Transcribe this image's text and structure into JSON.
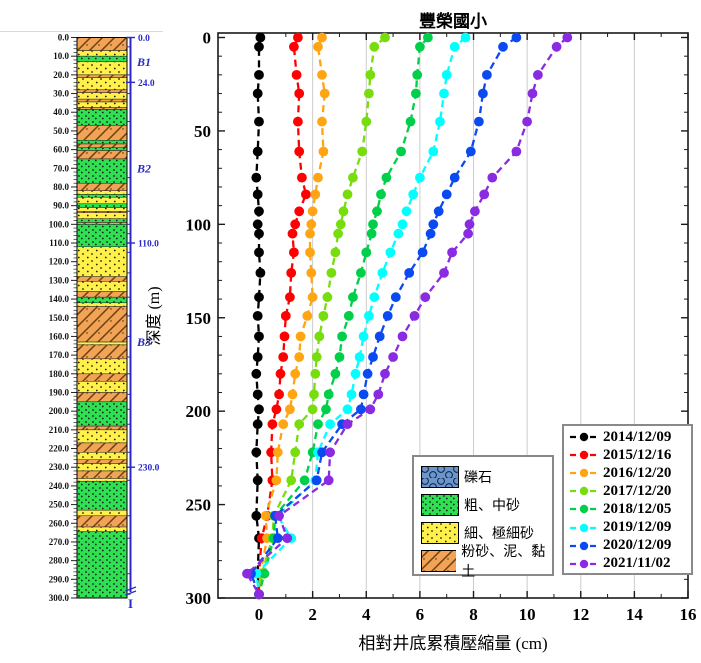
{
  "title": "豐榮國小",
  "axes": {
    "xlabel": "相對井底累積壓縮量 (cm)",
    "ylabel": "深度 (m)",
    "x_ticks": [
      0,
      2,
      4,
      6,
      8,
      10,
      12,
      14,
      16
    ],
    "y_ticks": [
      0,
      50,
      100,
      150,
      200,
      250,
      300
    ]
  },
  "chart_data": {
    "type": "line",
    "title": "豐榮國小",
    "xlabel": "相對井底累積壓縮量 (cm)",
    "ylabel": "深度 (m)",
    "xlim": [
      -1.53,
      16
    ],
    "ylim": [
      300,
      -2.4
    ],
    "grid": "vertical-only",
    "legend_position": "lower-right",
    "marker": "circle-dashed-line",
    "depths_m": [
      0,
      5,
      20,
      30,
      45,
      61,
      75,
      84,
      93,
      100,
      105,
      115,
      126,
      139,
      149,
      160,
      171,
      180,
      191,
      199,
      207,
      222,
      237,
      256,
      268,
      287,
      298
    ],
    "series": [
      {
        "name": "2014/12/09",
        "color": "#000000",
        "values": [
          0.05,
          0,
          0,
          -0.05,
          0,
          -0.05,
          -0.1,
          -0.05,
          0,
          -0.05,
          0,
          0,
          0.05,
          0,
          -0.05,
          0,
          -0.05,
          -0.1,
          -0.05,
          0,
          -0.05,
          -0.1,
          -0.05,
          -0.1,
          0,
          -0.05,
          0
        ]
      },
      {
        "name": "2015/12/16",
        "color": "#ff0000",
        "values": [
          1.45,
          1.3,
          1.4,
          1.5,
          1.45,
          1.5,
          1.6,
          1.75,
          1.5,
          1.35,
          1.25,
          1.3,
          1.2,
          1.15,
          1.0,
          0.95,
          0.9,
          0.8,
          0.75,
          0.65,
          0.5,
          0.45,
          0.5,
          0.3,
          0.1,
          0,
          0
        ]
      },
      {
        "name": "2016/12/20",
        "color": "#ffa514",
        "values": [
          2.35,
          2.2,
          2.35,
          2.45,
          2.35,
          2.4,
          2.2,
          2.1,
          2.0,
          1.95,
          1.9,
          1.9,
          1.95,
          2.0,
          1.8,
          1.55,
          1.5,
          1.35,
          1.25,
          1.15,
          0.9,
          0.7,
          0.65,
          0.25,
          0.3,
          0.05,
          0
        ]
      },
      {
        "name": "2017/12/20",
        "color": "#77dd0c",
        "values": [
          4.7,
          4.3,
          4.15,
          4.1,
          4.0,
          3.85,
          3.5,
          3.3,
          3.15,
          3.05,
          2.95,
          2.85,
          2.7,
          2.55,
          2.4,
          2.25,
          2.15,
          2.1,
          2.05,
          2.0,
          1.5,
          1.35,
          1.2,
          0.55,
          0.5,
          0.1,
          0
        ]
      },
      {
        "name": "2018/12/05",
        "color": "#00cf4a",
        "values": [
          6.3,
          6.0,
          5.9,
          5.85,
          5.65,
          5.3,
          4.75,
          4.55,
          4.4,
          4.25,
          4.2,
          4.0,
          3.8,
          3.5,
          3.35,
          3.1,
          3.0,
          2.85,
          2.6,
          2.5,
          2.2,
          2.0,
          1.7,
          0.6,
          0.55,
          0.2,
          0
        ]
      },
      {
        "name": "2019/12/09",
        "color": "#00ffff",
        "values": [
          7.7,
          7.3,
          7.0,
          6.9,
          6.75,
          6.5,
          6.0,
          5.75,
          5.5,
          5.35,
          5.2,
          4.9,
          4.6,
          4.3,
          4.1,
          3.9,
          3.75,
          3.6,
          3.45,
          3.3,
          2.65,
          2.2,
          2.1,
          0.7,
          1.2,
          -0.1,
          0
        ]
      },
      {
        "name": "2020/12/09",
        "color": "#0a4af0",
        "values": [
          9.6,
          9.1,
          8.5,
          8.35,
          8.2,
          7.9,
          7.3,
          7.0,
          6.7,
          6.5,
          6.4,
          6.1,
          5.6,
          5.1,
          4.8,
          4.5,
          4.25,
          4.05,
          3.9,
          3.8,
          3.1,
          2.35,
          2.15,
          0.6,
          0.7,
          -0.3,
          0
        ]
      },
      {
        "name": "2021/11/02",
        "color": "#8a2be2",
        "values": [
          11.5,
          11.1,
          10.4,
          10.2,
          10.0,
          9.6,
          8.7,
          8.4,
          8.05,
          7.85,
          7.8,
          7.2,
          6.9,
          6.2,
          5.8,
          5.35,
          5.0,
          4.7,
          4.45,
          4.15,
          3.3,
          2.65,
          2.6,
          0.75,
          1.05,
          -0.45,
          0
        ]
      }
    ]
  },
  "borehole": {
    "depth_labels": [
      "0.0",
      "10.0",
      "20.0",
      "30.0",
      "40.0",
      "50.0",
      "60.0",
      "70.0",
      "80.0",
      "90.0",
      "100.0",
      "110.0",
      "120.0",
      "130.0",
      "140.0",
      "150.0",
      "160.0",
      "170.0",
      "180.0",
      "190.0",
      "200.0",
      "210.0",
      "220.0",
      "230.0",
      "240.0",
      "250.0",
      "260.0",
      "270.0",
      "280.0",
      "290.0",
      "300.0"
    ],
    "zone_markers": [
      {
        "label": "0.0",
        "depth": 0,
        "kind": "tick"
      },
      {
        "label": "B1",
        "depth": 13,
        "kind": "zone"
      },
      {
        "label": "24.0",
        "depth": 24,
        "kind": "tick"
      },
      {
        "label": "B2",
        "depth": 70,
        "kind": "zone"
      },
      {
        "label": "110.0",
        "depth": 110,
        "kind": "tick"
      },
      {
        "label": "B3",
        "depth": 163,
        "kind": "zone"
      },
      {
        "label": "230.0",
        "depth": 230,
        "kind": "tick"
      }
    ],
    "anchor_symbol": "I",
    "bracket_color": "#2929c8",
    "layers": [
      [
        0,
        7,
        "silt_clay"
      ],
      [
        7,
        10,
        "fine_sand"
      ],
      [
        10,
        13,
        "coarse_sand"
      ],
      [
        13,
        20,
        "fine_sand"
      ],
      [
        20,
        21.5,
        "silt_clay"
      ],
      [
        21.5,
        28,
        "fine_sand"
      ],
      [
        28,
        29.5,
        "silt_clay"
      ],
      [
        29.5,
        33,
        "fine_sand"
      ],
      [
        33,
        34.5,
        "silt_clay"
      ],
      [
        34.5,
        37.5,
        "fine_sand"
      ],
      [
        37.5,
        38.5,
        "silt_clay"
      ],
      [
        38.5,
        47,
        "coarse_sand"
      ],
      [
        47,
        55,
        "silt_clay"
      ],
      [
        55,
        57,
        "coarse_sand"
      ],
      [
        57,
        59,
        "silt_clay"
      ],
      [
        59,
        60.5,
        "coarse_sand"
      ],
      [
        60.5,
        65,
        "silt_clay"
      ],
      [
        65,
        78,
        "coarse_sand"
      ],
      [
        78,
        82,
        "silt_clay"
      ],
      [
        82,
        84,
        "fine_sand"
      ],
      [
        84,
        85.5,
        "coarse_sand"
      ],
      [
        85.5,
        89,
        "fine_sand"
      ],
      [
        89,
        91,
        "coarse_sand"
      ],
      [
        91,
        93,
        "fine_sand"
      ],
      [
        93,
        93.8,
        "silt_clay"
      ],
      [
        93.8,
        97,
        "fine_sand"
      ],
      [
        97,
        99,
        "coarse_sand"
      ],
      [
        99,
        100,
        "silt_clay"
      ],
      [
        100,
        112,
        "coarse_sand"
      ],
      [
        112,
        128,
        "fine_sand"
      ],
      [
        128,
        130.5,
        "silt_clay"
      ],
      [
        130.5,
        136,
        "fine_sand"
      ],
      [
        136,
        139,
        "silt_clay"
      ],
      [
        139,
        142,
        "coarse_sand"
      ],
      [
        142,
        144,
        "fine_sand"
      ],
      [
        144,
        163,
        "silt_clay"
      ],
      [
        163,
        164.5,
        "fine_sand"
      ],
      [
        164.5,
        172,
        "silt_clay"
      ],
      [
        172,
        180,
        "fine_sand"
      ],
      [
        180,
        184,
        "silt_clay"
      ],
      [
        184,
        190,
        "fine_sand"
      ],
      [
        190,
        195,
        "silt_clay"
      ],
      [
        195,
        208,
        "coarse_sand"
      ],
      [
        208,
        210,
        "silt_clay"
      ],
      [
        210,
        217,
        "fine_sand"
      ],
      [
        217,
        222,
        "silt_clay"
      ],
      [
        222,
        226,
        "fine_sand"
      ],
      [
        226,
        228,
        "silt_clay"
      ],
      [
        228,
        232,
        "fine_sand"
      ],
      [
        232,
        236,
        "silt_clay"
      ],
      [
        236,
        237.5,
        "fine_sand"
      ],
      [
        237.5,
        253,
        "coarse_sand"
      ],
      [
        253,
        256,
        "fine_sand"
      ],
      [
        256,
        262,
        "silt_clay"
      ],
      [
        262,
        264.5,
        "fine_sand"
      ],
      [
        264.5,
        300,
        "coarse_sand"
      ]
    ]
  },
  "lithology_legend": [
    {
      "label": "礫石",
      "pattern": "gravel"
    },
    {
      "label": "粗、中砂",
      "pattern": "coarse_sand"
    },
    {
      "label": "細、極細砂",
      "pattern": "fine_sand"
    },
    {
      "label": "粉砂、泥、黏土",
      "pattern": "silt_clay"
    }
  ],
  "colors": {
    "gravel": "#6b96cc",
    "coarse_sand": "#2ee052",
    "fine_sand": "#fff04a",
    "silt_clay": "#f2a355",
    "hatch": "#6b4110",
    "grid": "#cccccc",
    "axis": "#1a1a1a"
  }
}
